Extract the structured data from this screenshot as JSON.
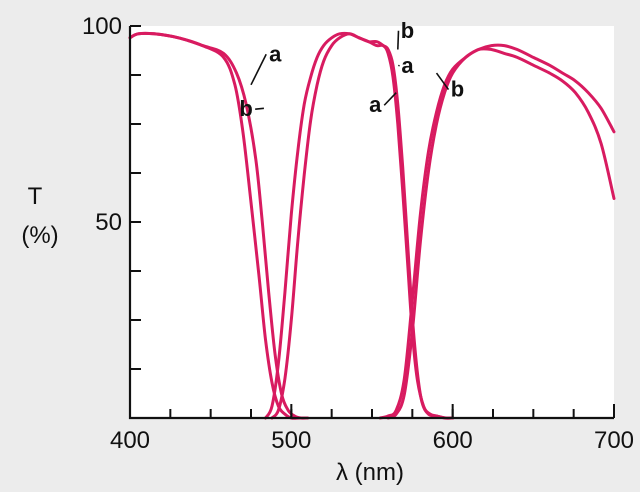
{
  "chart_data": {
    "type": "line",
    "xlabel": "λ (nm)",
    "ylabel": "T",
    "yunit": "(%)",
    "xlim": [
      400,
      700
    ],
    "ylim": [
      0,
      100
    ],
    "x_ticks": [
      400,
      500,
      600,
      700
    ],
    "y_ticks": [
      50,
      100
    ],
    "y_minor_ticks": [
      0,
      12.5,
      25,
      37.5,
      50,
      62.5,
      75,
      87.5,
      100
    ],
    "x_minor_ticks": [
      400,
      425,
      450,
      475,
      500,
      525,
      550,
      575,
      600,
      625,
      650,
      675,
      700
    ],
    "line_color": "#d81b60",
    "background": "#ffffff",
    "series": [
      {
        "name": "a",
        "segments": [
          {
            "x": [
              400,
              405,
              415,
              430,
              445,
              458,
              466,
              472,
              478,
              482,
              486,
              490,
              494,
              498,
              502,
              506,
              510
            ],
            "y": [
              97,
              98,
              98,
              97,
              95,
              93,
              88,
              80,
              66,
              50,
              32,
              16,
              6,
              2,
              0.5,
              0,
              0
            ]
          },
          {
            "x": [
              488,
              492,
              496,
              500,
              504,
              508,
              512,
              516,
              520,
              525,
              530,
              536,
              542,
              548,
              553,
              557,
              560,
              563,
              566,
              569,
              572,
              575,
              578,
              582,
              586,
              590,
              595,
              600
            ],
            "y": [
              0,
              2,
              10,
              25,
              45,
              62,
              76,
              85,
              91,
              95,
              97,
              98,
              97,
              96,
              95,
              95,
              93,
              87,
              75,
              58,
              40,
              22,
              10,
              3,
              1,
              0.5,
              0,
              0
            ]
          },
          {
            "x": [
              555,
              560,
              565,
              570,
              575,
              580,
              585,
              590,
              595,
              600,
              608,
              616,
              624,
              632,
              640,
              650,
              660,
              668,
              676,
              684,
              692,
              700
            ],
            "y": [
              0,
              0.5,
              2,
              10,
              30,
              52,
              68,
              78,
              85,
              89,
              92,
              94,
              94,
              93,
              92,
              90,
              88,
              86,
              83,
              78,
              70,
              56
            ]
          }
        ]
      },
      {
        "name": "b",
        "segments": [
          {
            "x": [
              400,
              405,
              415,
              430,
              445,
              458,
              465,
              470,
              475,
              480,
              484,
              488,
              492,
              496,
              500,
              505,
              510
            ],
            "y": [
              97,
              98,
              98,
              97,
              95,
              92,
              85,
              73,
              55,
              36,
              20,
              9,
              3,
              1,
              0,
              0,
              0
            ]
          },
          {
            "x": [
              484,
              488,
              492,
              496,
              500,
              504,
              508,
              512,
              516,
              520,
              525,
              530,
              536,
              542,
              548,
              553,
              557,
              560,
              563,
              566,
              569,
              572,
              575,
              578,
              581,
              585,
              590,
              596,
              600
            ],
            "y": [
              0,
              3,
              14,
              32,
              52,
              68,
              80,
              87,
              92,
              95,
              97,
              98,
              98,
              97,
              96,
              96,
              95,
              94,
              90,
              80,
              64,
              45,
              26,
              12,
              4,
              1,
              0.5,
              0,
              0
            ]
          },
          {
            "x": [
              560,
              565,
              570,
              575,
              580,
              585,
              590,
              595,
              600,
              608,
              616,
              624,
              632,
              640,
              650,
              660,
              668,
              676,
              684,
              692,
              700
            ],
            "y": [
              0,
              1,
              6,
              22,
              45,
              63,
              75,
              83,
              88,
              92,
              94,
              95,
              95,
              94,
              92,
              90,
              88,
              86,
              83,
              79,
              73
            ]
          }
        ]
      }
    ],
    "annotations": [
      {
        "text": "a",
        "x": 490,
        "y": 91,
        "point_x": 475,
        "point_y": 85
      },
      {
        "text": "b",
        "x": 472,
        "y": 77,
        "point_x": 483,
        "point_y": 79
      },
      {
        "text": "b",
        "x": 572,
        "y": 97,
        "point_x": 566,
        "point_y": 94
      },
      {
        "text": "a",
        "x": 572,
        "y": 88,
        "point_x": 567,
        "point_y": 90
      },
      {
        "text": "a",
        "x": 552,
        "y": 78,
        "point_x": 565,
        "point_y": 83
      },
      {
        "text": "b",
        "x": 603,
        "y": 82,
        "point_x": 590,
        "point_y": 88
      }
    ]
  }
}
